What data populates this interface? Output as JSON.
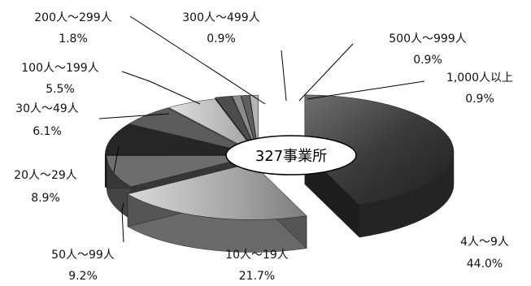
{
  "chart_data": {
    "type": "pie",
    "center_label": "327事業所",
    "slices": [
      {
        "category": "4人～9人",
        "value": 44.0,
        "value_label": "44.0%",
        "color": "#3a3a3a"
      },
      {
        "category": "10人～19人",
        "value": 21.7,
        "value_label": "21.7%",
        "color": "#a9a9a9"
      },
      {
        "category": "50人～99人",
        "value": 9.2,
        "value_label": "9.2%",
        "color": "#6e6e6e"
      },
      {
        "category": "20人～29人",
        "value": 8.9,
        "value_label": "8.9%",
        "color": "#262626"
      },
      {
        "category": "30人～49人",
        "value": 6.1,
        "value_label": "6.1%",
        "color": "#5c5c5c"
      },
      {
        "category": "100人～199人",
        "value": 5.5,
        "value_label": "5.5%",
        "color": "#c4c4c4"
      },
      {
        "category": "200人～299人",
        "value": 1.8,
        "value_label": "1.8%",
        "color": "#4d4d4d"
      },
      {
        "category": "300人～499人",
        "value": 0.9,
        "value_label": "0.9%",
        "color": "#8c8c8c"
      },
      {
        "category": "500人～999人",
        "value": 0.9,
        "value_label": "0.9%",
        "color": "#606060"
      },
      {
        "category": "1,000人以上",
        "value": 0.9,
        "value_label": "0.9%",
        "color": "#b5b5b5"
      }
    ]
  }
}
